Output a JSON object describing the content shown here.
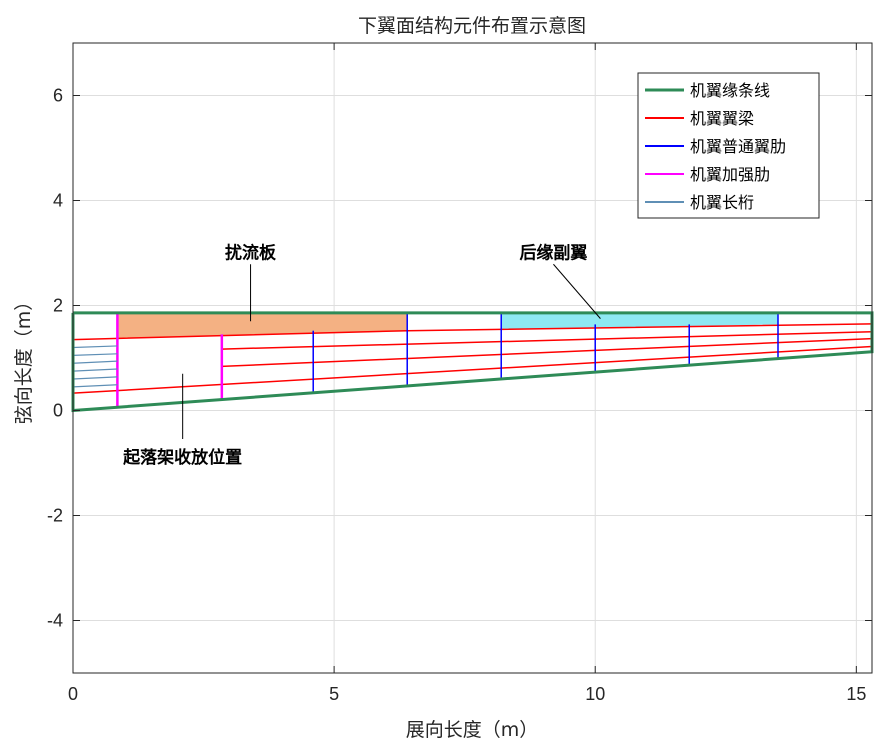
{
  "chart_data": {
    "type": "line",
    "title": "下翼面结构元件布置示意图",
    "xlabel": "展向长度（m）",
    "ylabel": "弦向长度（m）",
    "xlim": [
      0,
      15.3
    ],
    "ylim": [
      -5,
      7
    ],
    "xticks": [
      "0",
      "5",
      "10",
      "15"
    ],
    "yticks": [
      "-4",
      "-2",
      "0",
      "2",
      "4",
      "6"
    ],
    "xtick_values": [
      0,
      5,
      10,
      15
    ],
    "ytick_values": [
      -4,
      -2,
      0,
      2,
      4,
      6
    ],
    "grid": true,
    "legend_position": "top-right",
    "legend": [
      {
        "label": "机翼缘条线",
        "color": "#2e8b57"
      },
      {
        "label": "机翼翼梁",
        "color": "#ff0000"
      },
      {
        "label": "机翼普通翼肋",
        "color": "#0000ff"
      },
      {
        "label": "机翼加强肋",
        "color": "#ff00ff"
      },
      {
        "label": "机翼长桁",
        "color": "#5f8fb5"
      }
    ],
    "annotations": [
      {
        "text": "扰流板",
        "at": [
          3.4,
          2.9
        ],
        "arrow_to": [
          3.4,
          1.7
        ]
      },
      {
        "text": "后缘副翼",
        "at": [
          9.2,
          2.9
        ],
        "arrow_to": [
          10.1,
          1.75
        ]
      },
      {
        "text": "起落架收放位置",
        "at": [
          2.1,
          -1.0
        ],
        "arrow_to": [
          2.1,
          0.7
        ]
      }
    ],
    "patches": [
      {
        "name": "spoiler",
        "color": "#f4b183",
        "points": [
          [
            0.85,
            1.86
          ],
          [
            6.4,
            1.86
          ],
          [
            6.4,
            1.52
          ],
          [
            0.85,
            1.38
          ]
        ]
      },
      {
        "name": "aileron",
        "color": "#8ee8f2",
        "points": [
          [
            8.2,
            1.86
          ],
          [
            13.5,
            1.86
          ],
          [
            13.5,
            1.64
          ],
          [
            8.2,
            1.54
          ]
        ]
      }
    ],
    "series": [
      {
        "role": "outline",
        "color": "#2e8b57",
        "width": 3,
        "x": [
          0,
          15.3,
          15.3,
          0,
          0
        ],
        "y": [
          1.86,
          1.86,
          1.12,
          0,
          1.86
        ]
      },
      {
        "role": "spar",
        "color": "#ff0000",
        "width": 1.5,
        "x": [
          0,
          6.4,
          15.3
        ],
        "y": [
          1.35,
          1.52,
          1.65
        ]
      },
      {
        "role": "spar",
        "color": "#ff0000",
        "width": 1.5,
        "x": [
          2.85,
          15.3
        ],
        "y": [
          1.17,
          1.5
        ]
      },
      {
        "role": "spar",
        "color": "#ff0000",
        "width": 1.5,
        "x": [
          2.85,
          15.3
        ],
        "y": [
          0.84,
          1.37
        ]
      },
      {
        "role": "spar",
        "color": "#ff0000",
        "width": 1.5,
        "x": [
          0,
          15.3
        ],
        "y": [
          0.33,
          1.22
        ]
      },
      {
        "role": "rib",
        "color": "#0000ff",
        "width": 1.5,
        "x": [
          4.6,
          4.6
        ],
        "y": [
          0.35,
          1.52
        ]
      },
      {
        "role": "rib",
        "color": "#0000ff",
        "width": 1.5,
        "x": [
          6.4,
          6.4
        ],
        "y": [
          0.46,
          1.86
        ]
      },
      {
        "role": "rib",
        "color": "#0000ff",
        "width": 1.5,
        "x": [
          8.2,
          8.2
        ],
        "y": [
          0.6,
          1.86
        ]
      },
      {
        "role": "rib",
        "color": "#0000ff",
        "width": 1.5,
        "x": [
          10.0,
          10.0
        ],
        "y": [
          0.73,
          1.64
        ]
      },
      {
        "role": "rib",
        "color": "#0000ff",
        "width": 1.5,
        "x": [
          11.8,
          11.8
        ],
        "y": [
          0.87,
          1.64
        ]
      },
      {
        "role": "rib",
        "color": "#0000ff",
        "width": 1.5,
        "x": [
          13.5,
          13.5
        ],
        "y": [
          0.99,
          1.86
        ]
      },
      {
        "role": "strong-rib",
        "color": "#ff00ff",
        "width": 2.5,
        "x": [
          0.85,
          0.85
        ],
        "y": [
          0.06,
          1.86
        ]
      },
      {
        "role": "strong-rib",
        "color": "#ff00ff",
        "width": 2.5,
        "x": [
          2.85,
          2.85
        ],
        "y": [
          0.2,
          1.45
        ]
      },
      {
        "role": "stringer",
        "color": "#5f8fb5",
        "width": 1.2,
        "x": [
          0,
          0.85
        ],
        "y": [
          1.2,
          1.23
        ]
      },
      {
        "role": "stringer",
        "color": "#5f8fb5",
        "width": 1.2,
        "x": [
          0,
          0.85
        ],
        "y": [
          1.05,
          1.08
        ]
      },
      {
        "role": "stringer",
        "color": "#5f8fb5",
        "width": 1.2,
        "x": [
          0,
          0.85
        ],
        "y": [
          0.9,
          0.94
        ]
      },
      {
        "role": "stringer",
        "color": "#5f8fb5",
        "width": 1.2,
        "x": [
          0,
          0.85
        ],
        "y": [
          0.75,
          0.79
        ]
      },
      {
        "role": "stringer",
        "color": "#5f8fb5",
        "width": 1.2,
        "x": [
          0,
          0.85
        ],
        "y": [
          0.6,
          0.64
        ]
      },
      {
        "role": "stringer",
        "color": "#5f8fb5",
        "width": 1.2,
        "x": [
          0,
          0.85
        ],
        "y": [
          0.45,
          0.49
        ]
      }
    ]
  }
}
